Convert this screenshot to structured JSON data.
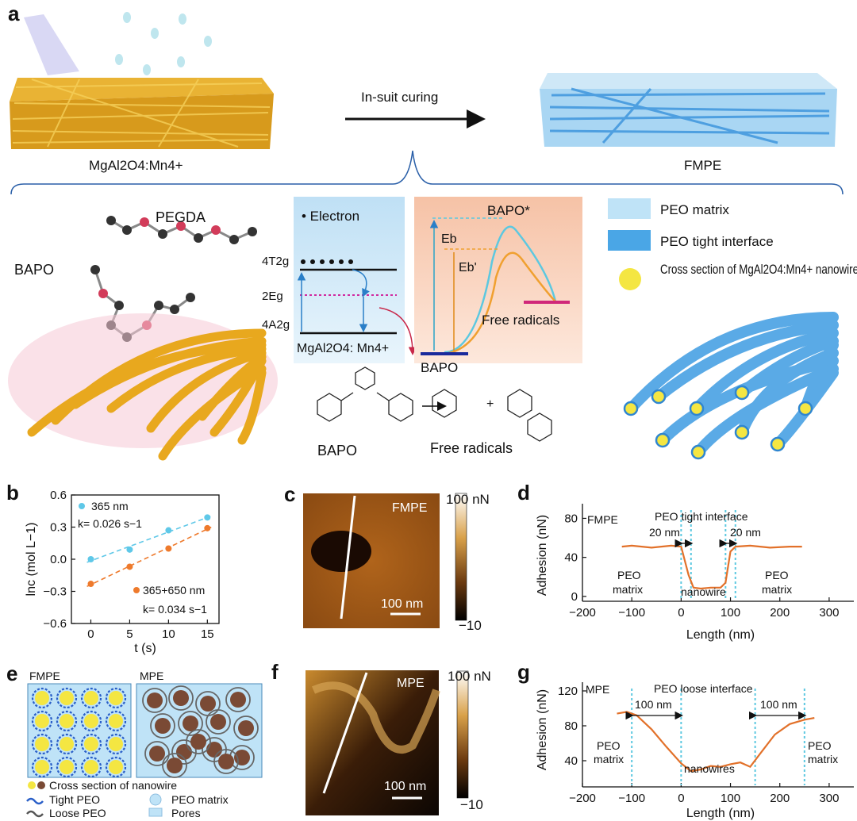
{
  "panel_a": {
    "letter": "a",
    "arrow_label": "In-suit curing",
    "left_caption": "MgAl2O4:Mn4+",
    "right_caption": "FMPE",
    "molecule_pegda": "PEGDA",
    "molecule_bapo": "BAPO",
    "electron_label": "• Electron",
    "levels": [
      "4T2g",
      "2Eg",
      "4A2g"
    ],
    "host_label": "MgAl2O4: Mn4+",
    "energy": {
      "excited": "BAPO*",
      "eb": "Eb",
      "ebp": "Eb'",
      "ground": "BAPO",
      "product": "Free radicals"
    },
    "reaction": {
      "reactant": "BAPO",
      "products": "Free radicals",
      "plus": "+"
    },
    "legend": [
      {
        "label": "PEO matrix",
        "color": "#bfe3f7"
      },
      {
        "label": "PEO tight interface",
        "color": "#4aa6e6"
      },
      {
        "label": "Cross section of MgAl2O4:Mn4+ nanowire",
        "color": "#f4e642"
      }
    ]
  },
  "panel_b": {
    "letter": "b",
    "chart_data": {
      "type": "scatter",
      "xlabel": "t (s)",
      "ylabel": "lnc (mol L−1)",
      "xlim": [
        -2.5,
        16.5
      ],
      "ylim": [
        -0.6,
        0.6
      ],
      "xticks": [
        0,
        5,
        10,
        15
      ],
      "yticks": [
        -0.6,
        -0.3,
        0.0,
        0.3,
        0.6
      ],
      "series": [
        {
          "name": "365 nm",
          "k": "k= 0.026 s−1",
          "color": "#5fc8e8",
          "x": [
            0,
            5,
            10,
            15
          ],
          "y": [
            0.0,
            0.09,
            0.27,
            0.39
          ]
        },
        {
          "name": "365+650 nm",
          "k": "k= 0.034 s−1",
          "color": "#ee7a2c",
          "x": [
            0,
            5,
            10,
            15
          ],
          "y": [
            -0.23,
            -0.07,
            0.1,
            0.29
          ]
        }
      ]
    }
  },
  "panel_c": {
    "letter": "c",
    "label": "FMPE",
    "scale": "100 nm",
    "cb_max": "100 nN",
    "cb_min": "−10"
  },
  "panel_d": {
    "letter": "d",
    "chart_data": {
      "type": "line",
      "xlabel": "Length (nm)",
      "ylabel": "Adhesion (nN)",
      "xlim": [
        -200,
        350
      ],
      "ylim": [
        -5,
        95
      ],
      "xticks": [
        -200,
        -100,
        0,
        100,
        200,
        300
      ],
      "yticks": [
        0,
        40,
        80
      ],
      "series": [
        {
          "x": [
            -120,
            -100,
            -60,
            -20,
            0,
            15,
            25,
            40,
            60,
            80,
            90,
            100,
            110,
            140,
            180,
            220,
            245
          ],
          "y": [
            51,
            52,
            50,
            52,
            51,
            22,
            9,
            8,
            9,
            9,
            14,
            46,
            51,
            52,
            50,
            51,
            51
          ]
        }
      ]
    },
    "labels": {
      "sample": "FMPE",
      "interface": "PEO tight interface",
      "w_left": "20 nm",
      "w_right": "20 nm",
      "matrix": "PEO matrix",
      "nanowire": "nanowire"
    }
  },
  "panel_e": {
    "letter": "e",
    "left_title": "FMPE",
    "right_title": "MPE",
    "legend": [
      "Cross section of nanowire",
      "Tight PEO",
      "Loose PEO",
      "PEO matrix",
      "Pores"
    ]
  },
  "panel_f": {
    "letter": "f",
    "label": "MPE",
    "scale": "100 nm",
    "cb_max": "100 nN",
    "cb_min": "−10"
  },
  "panel_g": {
    "letter": "g",
    "chart_data": {
      "type": "line",
      "xlabel": "Length (nm)",
      "ylabel": "Adhesion (nN)",
      "xlim": [
        -200,
        350
      ],
      "ylim": [
        10,
        130
      ],
      "xticks": [
        -200,
        -100,
        0,
        100,
        200,
        300
      ],
      "yticks": [
        40,
        80,
        120
      ],
      "series": [
        {
          "x": [
            -130,
            -110,
            -90,
            -60,
            -30,
            0,
            20,
            40,
            60,
            80,
            100,
            120,
            140,
            160,
            190,
            220,
            250,
            270
          ],
          "y": [
            94,
            96,
            92,
            76,
            56,
            37,
            28,
            30,
            34,
            33,
            36,
            38,
            33,
            48,
            70,
            82,
            87,
            89
          ]
        }
      ]
    },
    "labels": {
      "sample": "MPE",
      "interface": "PEO loose interface",
      "w_left": "100 nm",
      "w_right": "100 nm",
      "matrix": "PEO matrix",
      "nanowire": "nanowires"
    }
  }
}
